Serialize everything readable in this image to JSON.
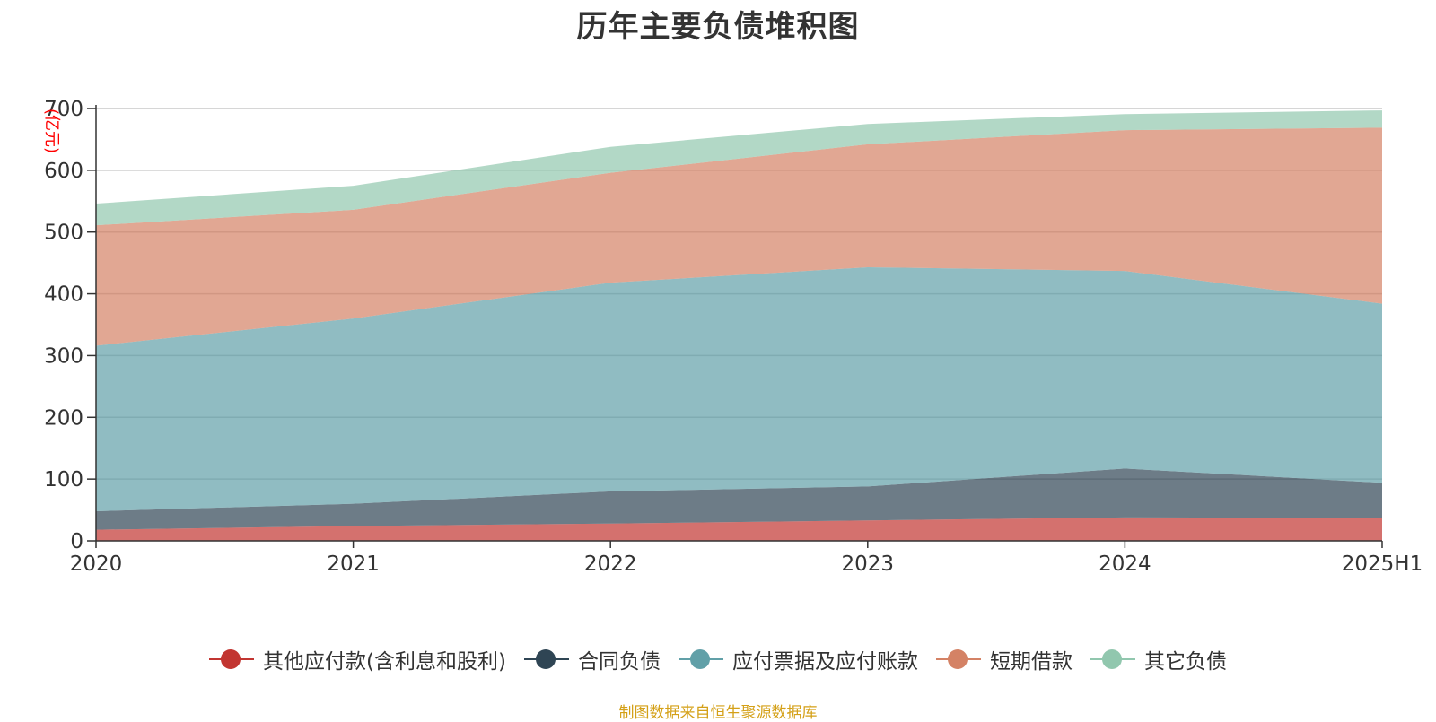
{
  "chart_data": {
    "type": "area",
    "stacked": true,
    "title": "历年主要负债堆积图",
    "unit_label": "(亿元)",
    "categories": [
      "2020",
      "2021",
      "2022",
      "2023",
      "2024",
      "2025H1"
    ],
    "ylim": [
      0,
      700
    ],
    "y_ticks": [
      0,
      100,
      200,
      300,
      400,
      500,
      600,
      700
    ],
    "grid": true,
    "legend_position": "bottom",
    "series": [
      {
        "name": "其他应付款(含利息和股利)",
        "color": "#c23531",
        "values": [
          18,
          24,
          28,
          33,
          38,
          37
        ]
      },
      {
        "name": "合同负债",
        "color": "#2f4554",
        "values": [
          30,
          36,
          52,
          55,
          79,
          57
        ]
      },
      {
        "name": "应付票据及应付账款",
        "color": "#61a0a8",
        "values": [
          268,
          300,
          338,
          355,
          320,
          290
        ]
      },
      {
        "name": "短期借款",
        "color": "#d48265",
        "values": [
          195,
          176,
          178,
          199,
          228,
          285
        ]
      },
      {
        "name": "其它负债",
        "color": "#91c7ae",
        "values": [
          35,
          39,
          42,
          33,
          26,
          28
        ]
      }
    ]
  },
  "source_note": "制图数据来自恒生聚源数据库"
}
